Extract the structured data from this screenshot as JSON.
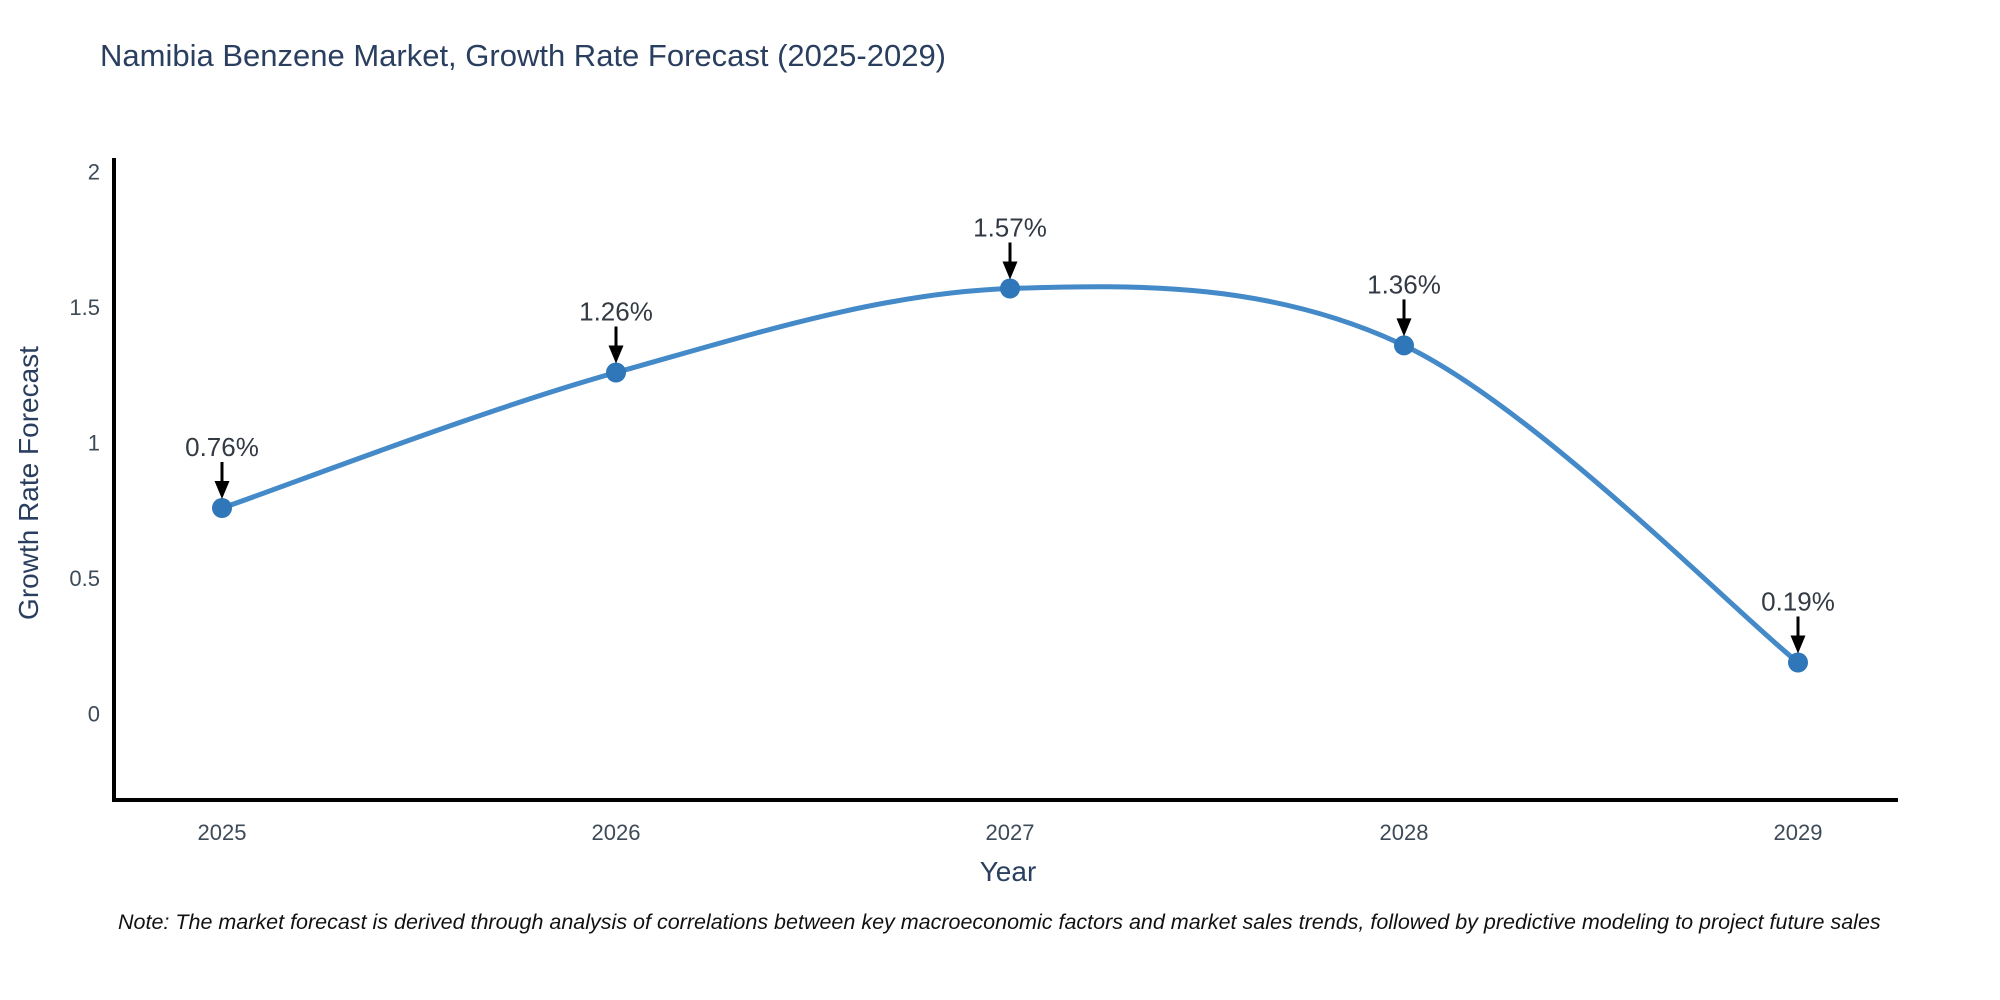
{
  "chart_data": {
    "type": "line",
    "title": "Namibia Benzene Market, Growth Rate Forecast (2025-2029)",
    "xlabel": "Year",
    "ylabel": "Growth Rate Forecast",
    "categories": [
      "2025",
      "2026",
      "2027",
      "2028",
      "2029"
    ],
    "values": [
      0.76,
      1.26,
      1.57,
      1.36,
      0.19
    ],
    "point_labels": [
      "0.76%",
      "1.26%",
      "1.57%",
      "1.36%",
      "0.19%"
    ],
    "y_ticks": [
      "2",
      "1.5",
      "1",
      "0.5",
      "0"
    ],
    "y_tick_values": [
      2,
      1.5,
      1,
      0.5,
      0
    ],
    "ylim": [
      -0.32,
      2.05
    ],
    "grid": false,
    "legend": "none",
    "line_shape": "spline",
    "line_color": "#4489c8",
    "marker_color": "#2f77b8",
    "axis_color": "#000000",
    "annotation_arrow_color": "#000000",
    "note": "Note: The market forecast is derived through analysis of correlations between key macroeconomic factors and market sales trends, followed by predictive modeling to project future sales"
  }
}
